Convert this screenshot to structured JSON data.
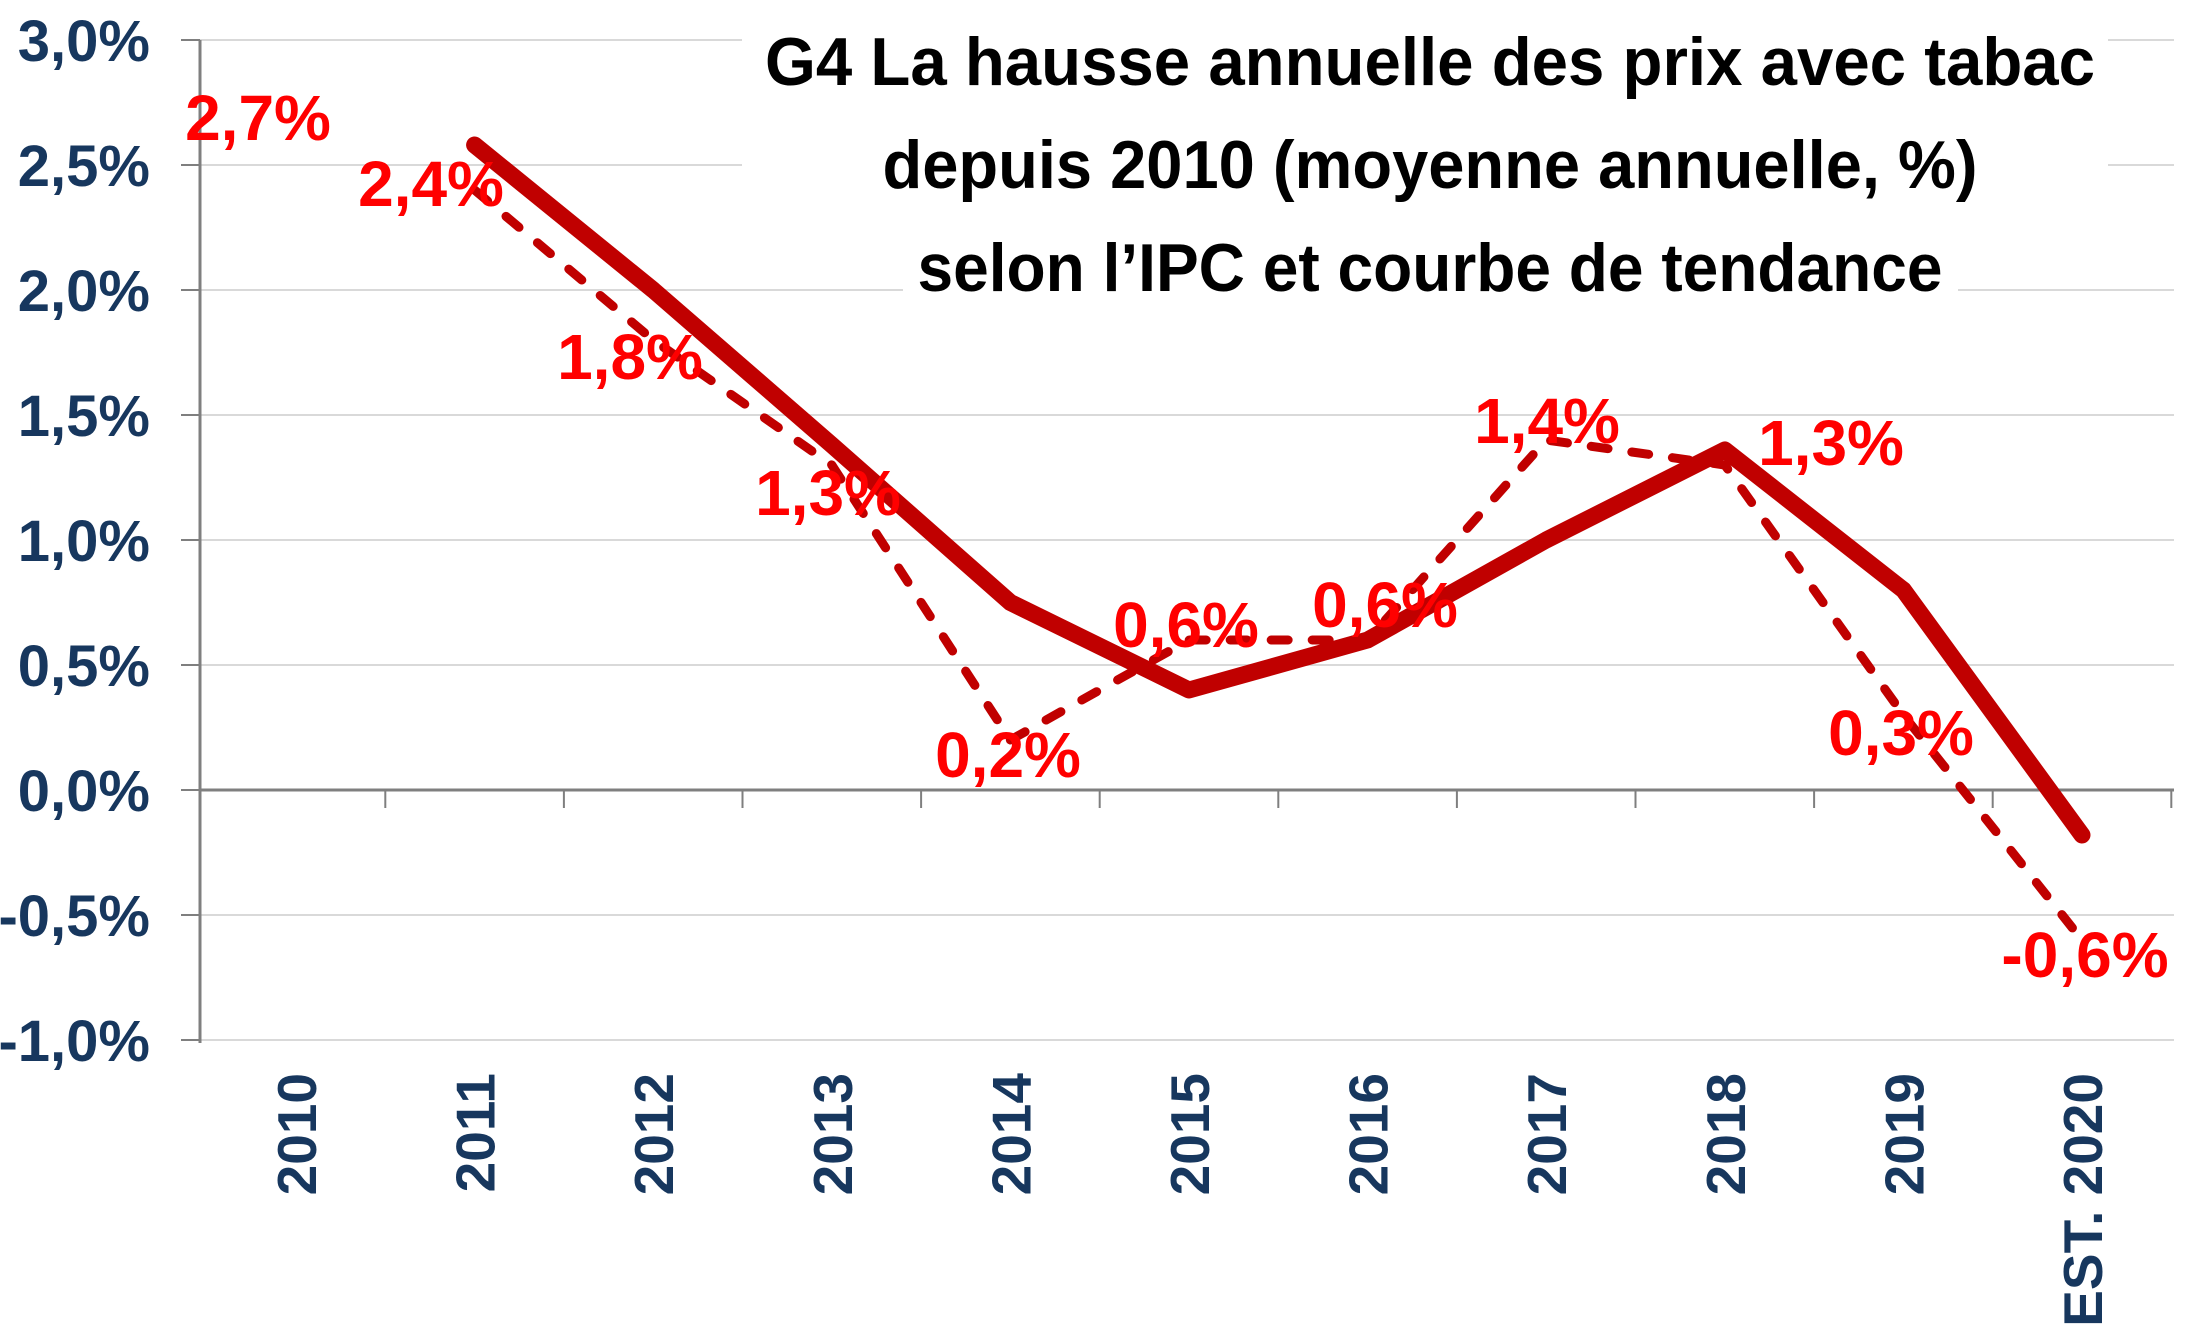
{
  "chart_data": {
    "type": "line",
    "title_lines": [
      "G4   La hausse annuelle des prix avec tabac",
      "depuis 2010 (moyenne annuelle, %)",
      "selon l’IPC et courbe de tendance"
    ],
    "categories": [
      "2010",
      "2011",
      "2012",
      "2013",
      "2014",
      "2015",
      "2016",
      "2017",
      "2018",
      "2019",
      "EST. 2020"
    ],
    "y_ticks": [
      "3,0%",
      "2,5%",
      "2,0%",
      "1,5%",
      "1,0%",
      "0,5%",
      "0,0%",
      "-0,5%",
      "-1,0%"
    ],
    "y_tick_values": [
      3.0,
      2.5,
      2.0,
      1.5,
      1.0,
      0.5,
      0.0,
      -0.5,
      -1.0
    ],
    "ylim": [
      -1.0,
      3.0
    ],
    "grid": true,
    "legend": false,
    "series": [
      {
        "name": "IPC (hausse annuelle des prix, avec tabac)",
        "style": "dashed",
        "values": [
          2.7,
          2.4,
          1.8,
          1.3,
          0.2,
          0.6,
          0.6,
          1.4,
          1.3,
          0.3,
          -0.6
        ],
        "labels": [
          "2,7%",
          "2,4%",
          "1,8%",
          "1,3%",
          "0,2%",
          "0,6%",
          "0,6%",
          "1,4%",
          "1,3%",
          "0,3%",
          "-0,6%"
        ],
        "line_drawn_from": "2011"
      },
      {
        "name": "courbe de tendance",
        "style": "solid-thick",
        "values": [
          null,
          2.58,
          2.0,
          1.38,
          0.75,
          0.4,
          0.6,
          1.0,
          1.36,
          0.8,
          -0.18
        ]
      }
    ],
    "colors": {
      "line_dark_red": "#C00000",
      "data_label_red": "#FF0000",
      "axis_label_navy": "#17375E",
      "title_black": "#000000",
      "gridline_gray": "#D9D9D9",
      "axis_gray": "#7F7F7F"
    }
  }
}
